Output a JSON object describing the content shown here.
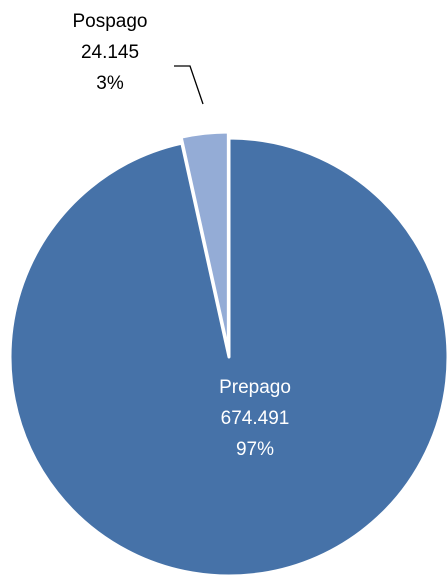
{
  "chart_data": {
    "type": "pie",
    "title": "",
    "colors": {
      "Prepago": "#4672A8",
      "Pospago": "#94ACD6"
    },
    "slices": [
      {
        "name": "Prepago",
        "value": 674491,
        "value_label": "674.491",
        "percent": 97,
        "percent_label": "97%",
        "label_position": "inside",
        "exploded": false
      },
      {
        "name": "Pospago",
        "value": 24145,
        "value_label": "24.145",
        "percent": 3,
        "percent_label": "3%",
        "label_position": "outside-top",
        "exploded": true
      }
    ]
  }
}
